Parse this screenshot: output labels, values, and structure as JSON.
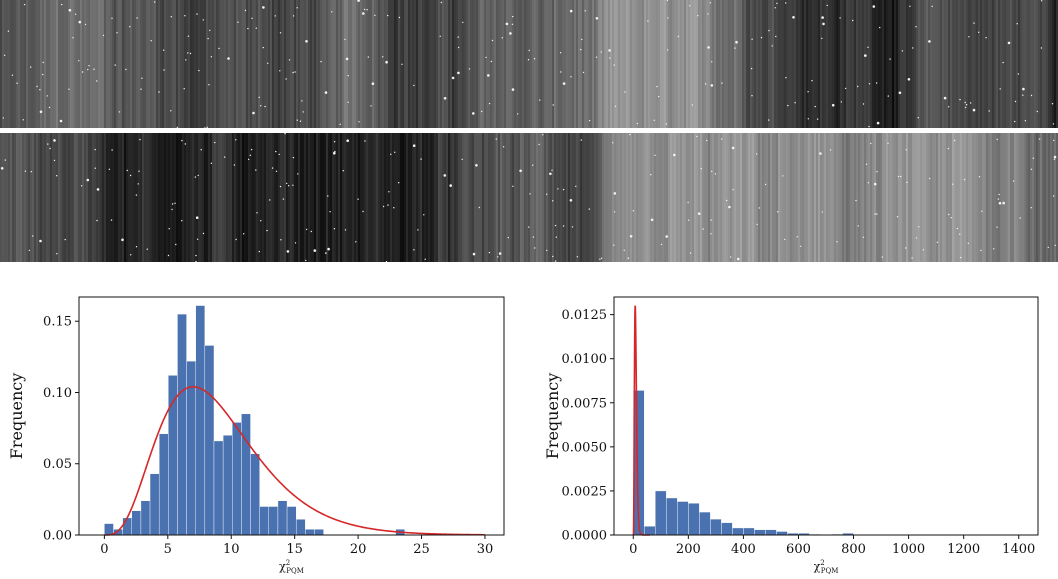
{
  "image_strips": [
    {
      "name": "spectrum-strip-top"
    },
    {
      "name": "spectrum-strip-bottom"
    }
  ],
  "colors": {
    "bar": "#4a72b0",
    "fit_curve": "#d62728",
    "axes": "#111111"
  },
  "chart_data": [
    {
      "type": "bar",
      "ylabel": "Frequency",
      "xlabel_main": "χ",
      "xlabel_sup": "2",
      "xlabel_sub": "PQM",
      "xlim": [
        -2,
        31.5
      ],
      "ylim": [
        0,
        0.167
      ],
      "xticks": [
        0,
        5,
        10,
        15,
        20,
        25,
        30
      ],
      "yticks": [
        0.0,
        0.05,
        0.1,
        0.15
      ],
      "ytick_labels": [
        "0.00",
        "0.05",
        "0.10",
        "0.15"
      ],
      "bin_width": 0.72,
      "bin_starts": [
        0.0,
        0.72,
        1.44,
        2.16,
        2.88,
        3.6,
        4.32,
        5.04,
        5.76,
        6.48,
        7.2,
        7.92,
        8.64,
        9.36,
        10.08,
        10.8,
        11.52,
        12.24,
        12.96,
        13.68,
        14.4,
        15.12,
        15.84,
        16.56,
        17.28,
        22.32,
        22.96
      ],
      "values": [
        0.008,
        0.004,
        0.012,
        0.017,
        0.024,
        0.043,
        0.071,
        0.112,
        0.155,
        0.122,
        0.161,
        0.133,
        0.066,
        0.07,
        0.079,
        0.085,
        0.057,
        0.02,
        0.02,
        0.024,
        0.02,
        0.011,
        0.004,
        0.004,
        0.0,
        0.0,
        0.004
      ],
      "fit_curve": {
        "type": "chi2-like",
        "peak_x": 7.0,
        "peak_y": 0.104,
        "x_range": [
          0,
          30
        ]
      }
    },
    {
      "type": "bar",
      "ylabel": "Frequency",
      "xlabel_main": "χ",
      "xlabel_sup": "2",
      "xlabel_sub": "PQM",
      "xlim": [
        -70,
        1470
      ],
      "ylim": [
        0,
        0.0135
      ],
      "xticks": [
        0,
        200,
        400,
        600,
        800,
        1000,
        1200,
        1400
      ],
      "yticks": [
        0.0,
        0.0025,
        0.005,
        0.0075,
        0.01,
        0.0125
      ],
      "ytick_labels": [
        "0.0000",
        "0.0025",
        "0.0050",
        "0.0075",
        "0.0100",
        "0.0125"
      ],
      "bin_width": 40,
      "bin_starts": [
        0,
        40,
        80,
        120,
        160,
        200,
        240,
        280,
        320,
        360,
        400,
        440,
        480,
        520,
        560,
        600,
        640,
        680,
        720,
        760,
        800,
        840,
        880,
        920,
        960,
        1000,
        1040,
        1080,
        1120,
        1160,
        1200,
        1240,
        1280,
        1320,
        1360
      ],
      "values": [
        0.0082,
        0.0005,
        0.0025,
        0.0021,
        0.0019,
        0.0018,
        0.0013,
        0.0009,
        0.0007,
        0.0004,
        0.0004,
        0.0003,
        0.0003,
        0.0002,
        0.0001,
        0.0001,
        5e-05,
        0.0,
        5e-05,
        0.0001,
        0.0,
        3e-05,
        0.0,
        0.0,
        0.0,
        0.0,
        0.0,
        0.0,
        0.0,
        0.0,
        0.0,
        0.0,
        0.0,
        0.0,
        2e-05
      ],
      "fit_curve": {
        "type": "chi2-like",
        "peak_x": 7.0,
        "peak_y": 0.013,
        "x_range": [
          0,
          60
        ]
      }
    }
  ]
}
